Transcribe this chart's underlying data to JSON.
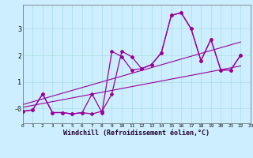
{
  "xlabel": "Windchill (Refroidissement éolien,°C)",
  "bg_color": "#cceeff",
  "line_color": "#990099",
  "grid_color": "#aadddd",
  "xmin": 0,
  "xmax": 23,
  "ymin": -0.55,
  "ymax": 3.9,
  "series1_x": [
    0,
    1,
    2,
    3,
    4,
    5,
    6,
    7,
    8,
    9,
    10,
    11,
    12,
    13,
    14,
    15,
    16,
    17,
    18,
    19,
    20,
    21,
    22
  ],
  "series1_y": [
    -0.1,
    -0.05,
    0.55,
    -0.15,
    -0.15,
    -0.2,
    -0.15,
    -0.2,
    -0.1,
    0.55,
    2.15,
    1.95,
    1.5,
    1.65,
    2.1,
    3.5,
    3.6,
    3.0,
    1.8,
    2.6,
    1.45,
    1.45,
    2.0
  ],
  "series2_x": [
    0,
    1,
    2,
    3,
    4,
    5,
    6,
    7,
    8,
    9,
    10,
    11,
    12,
    13,
    14,
    15,
    16,
    17,
    18,
    19,
    20,
    21,
    22
  ],
  "series2_y": [
    -0.1,
    -0.05,
    0.55,
    -0.15,
    -0.15,
    -0.2,
    -0.15,
    0.55,
    -0.15,
    2.15,
    1.95,
    1.45,
    1.5,
    1.65,
    2.1,
    3.5,
    3.6,
    3.0,
    1.8,
    2.6,
    1.45,
    1.45,
    2.0
  ],
  "trend1_x": [
    0,
    22
  ],
  "trend1_y": [
    0.05,
    1.6
  ],
  "trend2_x": [
    0,
    22
  ],
  "trend2_y": [
    0.15,
    2.5
  ]
}
